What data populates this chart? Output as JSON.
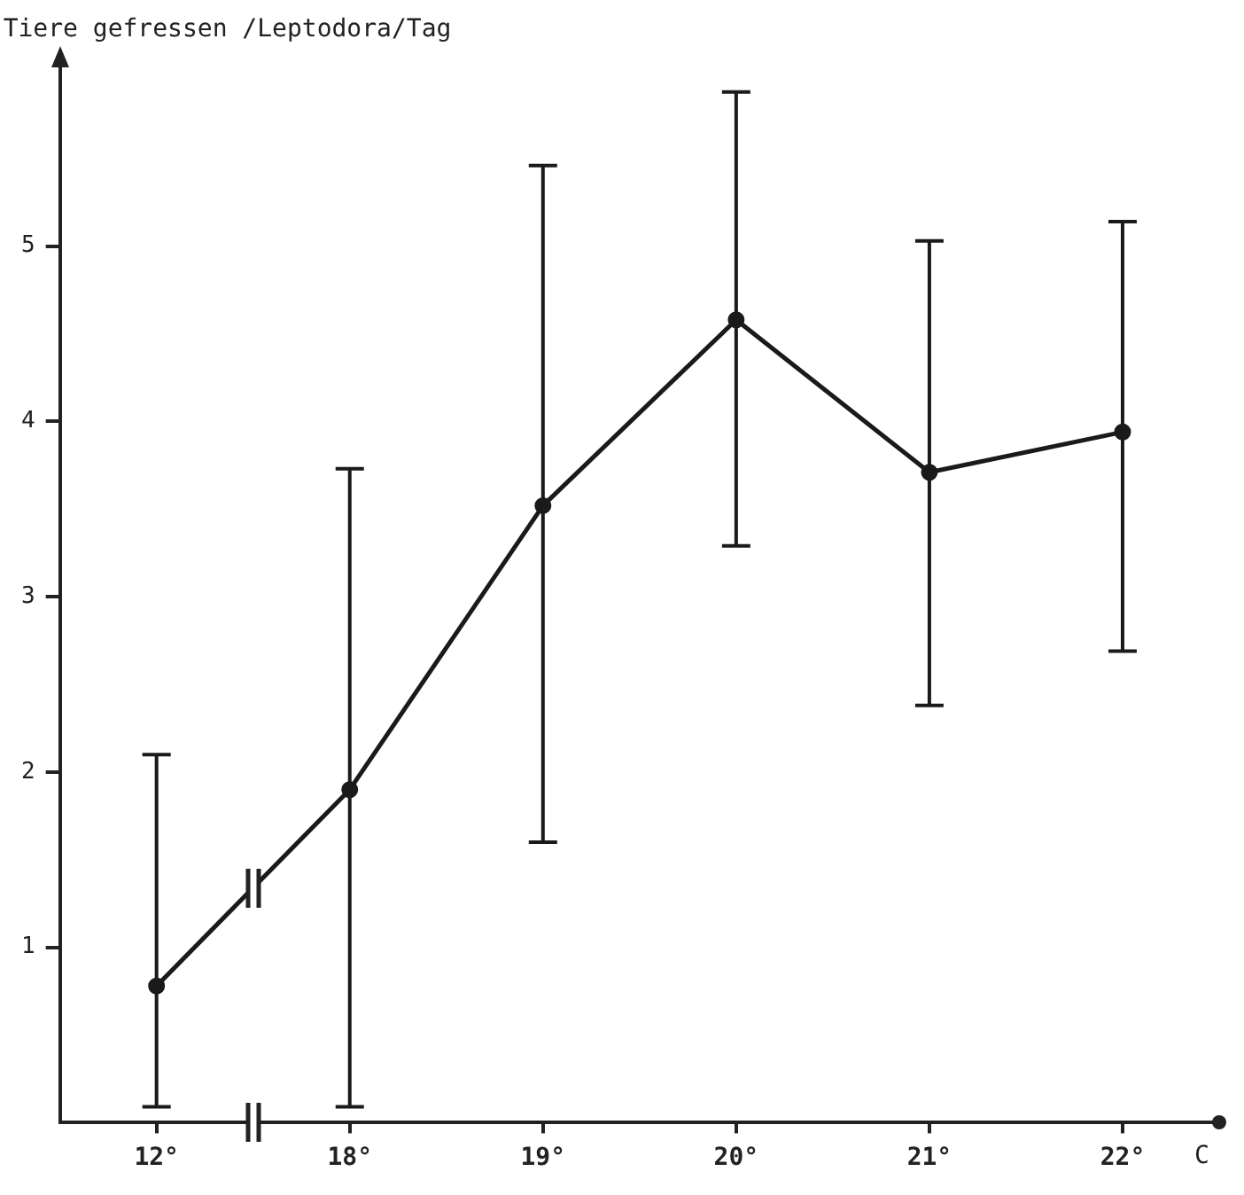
{
  "chart_data": {
    "type": "line",
    "ylabel": "Tiere gefressen /Leptodora/Tag",
    "xlabel": "C",
    "categories": [
      "12°",
      "18°",
      "19°",
      "20°",
      "21°",
      "22°"
    ],
    "values": [
      0.78,
      1.9,
      3.52,
      4.58,
      3.71,
      3.94
    ],
    "errors": [
      [
        0.09,
        2.1
      ],
      [
        0.09,
        3.73
      ],
      [
        1.6,
        5.46
      ],
      [
        3.29,
        5.88
      ],
      [
        2.38,
        5.03
      ],
      [
        2.69,
        5.14
      ]
    ],
    "color": "#1a1a1a",
    "marker": "circle",
    "line_style": "solid",
    "grid": false,
    "legend": false,
    "ylim": [
      0,
      6
    ],
    "yticks": [
      1,
      2,
      3,
      4,
      5
    ]
  }
}
